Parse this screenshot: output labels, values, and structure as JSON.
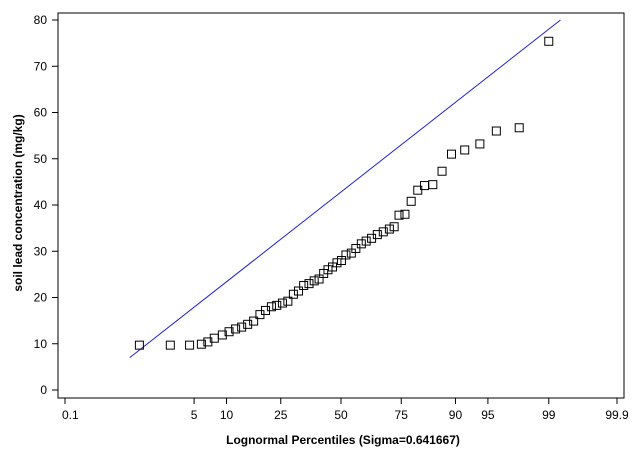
{
  "chart_data": {
    "type": "scatter",
    "xlabel": "Lognormal Percentiles (Sigma=0.641667)",
    "ylabel": "soil lead concentration (mg/kg)",
    "x_scale": "probability-percentile",
    "x_ticks": [
      {
        "value": 0.1,
        "label": "0.1"
      },
      {
        "value": 5,
        "label": "5"
      },
      {
        "value": 10,
        "label": "10"
      },
      {
        "value": 25,
        "label": "25"
      },
      {
        "value": 50,
        "label": "50"
      },
      {
        "value": 75,
        "label": "75"
      },
      {
        "value": 90,
        "label": "90"
      },
      {
        "value": 95,
        "label": "95"
      },
      {
        "value": 99,
        "label": "99"
      },
      {
        "value": 99.9,
        "label": "99.9"
      }
    ],
    "ylim": [
      0,
      80
    ],
    "y_ticks": [
      0,
      10,
      20,
      30,
      40,
      50,
      60,
      70,
      80
    ],
    "grid": false,
    "reference_line": {
      "color": "#2222cc",
      "from": [
        0.9,
        7
      ],
      "to": [
        99.3,
        80
      ]
    },
    "points": [
      [
        1.2,
        9.7
      ],
      [
        2.8,
        9.7
      ],
      [
        4.5,
        9.7
      ],
      [
        5.9,
        9.9
      ],
      [
        6.8,
        10.4
      ],
      [
        7.8,
        11.2
      ],
      [
        9.2,
        11.9
      ],
      [
        10.5,
        12.6
      ],
      [
        11.9,
        13.2
      ],
      [
        13.3,
        13.6
      ],
      [
        14.8,
        14.2
      ],
      [
        16.4,
        14.9
      ],
      [
        18.2,
        16.3
      ],
      [
        19.9,
        17.2
      ],
      [
        21.8,
        18.0
      ],
      [
        23.6,
        18.3
      ],
      [
        25.6,
        18.8
      ],
      [
        27.6,
        19.2
      ],
      [
        29.7,
        20.7
      ],
      [
        31.7,
        21.4
      ],
      [
        33.8,
        22.6
      ],
      [
        36.0,
        23.0
      ],
      [
        38.2,
        23.6
      ],
      [
        40.3,
        24.0
      ],
      [
        42.3,
        25.2
      ],
      [
        44.2,
        26.0
      ],
      [
        46.2,
        26.6
      ],
      [
        48.2,
        27.5
      ],
      [
        50.2,
        28.0
      ],
      [
        52.2,
        29.2
      ],
      [
        54.6,
        29.6
      ],
      [
        56.6,
        30.6
      ],
      [
        59.0,
        31.6
      ],
      [
        61.1,
        32.2
      ],
      [
        63.4,
        32.8
      ],
      [
        65.8,
        33.6
      ],
      [
        68.2,
        34.2
      ],
      [
        70.6,
        34.8
      ],
      [
        72.4,
        35.3
      ],
      [
        74.2,
        37.8
      ],
      [
        76.3,
        38.0
      ],
      [
        78.4,
        40.8
      ],
      [
        80.5,
        43.2
      ],
      [
        82.5,
        44.2
      ],
      [
        84.8,
        44.4
      ],
      [
        87.1,
        47.3
      ],
      [
        89.2,
        51.0
      ],
      [
        91.7,
        51.9
      ],
      [
        94.0,
        53.2
      ],
      [
        95.9,
        56.0
      ],
      [
        97.7,
        56.7
      ],
      [
        99.0,
        75.4
      ]
    ]
  }
}
